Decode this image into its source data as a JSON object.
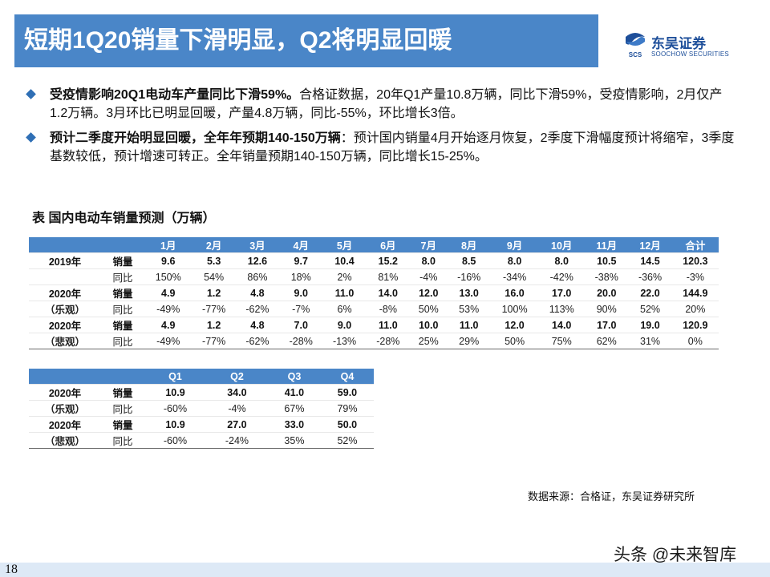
{
  "title": "短期1Q20销量下滑明显，Q2将明显回暖",
  "logo": {
    "cn": "东吴证券",
    "en": "SOOCHOW SECURITIES",
    "mark_text": "SCS"
  },
  "bullets": [
    {
      "bold": "受疫情影响20Q1电动车产量同比下滑59%。",
      "text": "合格证数据，20年Q1产量10.8万辆，同比下滑59%，受疫情影响，2月仅产1.2万辆。3月环比已明显回暖，产量4.8万辆，同比-55%，环比增长3倍。"
    },
    {
      "bold": "预计二季度开始明显回暖，全年年预期140-150万辆",
      "text": "：预计国内销量4月开始逐月恢复，2季度下滑幅度预计将缩窄，3季度基数较低，预计增速可转正。全年销量预期140-150万辆，同比增长15-25%。"
    }
  ],
  "table_caption": "表  国内电动车销量预测（万辆）",
  "table1": {
    "headers": [
      "1月",
      "2月",
      "3月",
      "4月",
      "5月",
      "6月",
      "7月",
      "8月",
      "9月",
      "10月",
      "11月",
      "12月",
      "合计"
    ],
    "groups": [
      {
        "label": "2019年",
        "label2": "",
        "sales_label": "销量",
        "sales": [
          "9.6",
          "5.3",
          "12.6",
          "9.7",
          "10.4",
          "15.2",
          "8.0",
          "8.5",
          "8.0",
          "8.0",
          "10.5",
          "14.5",
          "120.3"
        ],
        "yoy_label": "同比",
        "yoy": [
          "150%",
          "54%",
          "86%",
          "18%",
          "2%",
          "81%",
          "-4%",
          "-16%",
          "-34%",
          "-42%",
          "-38%",
          "-36%",
          "-3%"
        ]
      },
      {
        "label": "2020年",
        "label2": "（乐观）",
        "sales_label": "销量",
        "sales": [
          "4.9",
          "1.2",
          "4.8",
          "9.0",
          "11.0",
          "14.0",
          "12.0",
          "13.0",
          "16.0",
          "17.0",
          "20.0",
          "22.0",
          "144.9"
        ],
        "yoy_label": "同比",
        "yoy": [
          "-49%",
          "-77%",
          "-62%",
          "-7%",
          "6%",
          "-8%",
          "50%",
          "53%",
          "100%",
          "113%",
          "90%",
          "52%",
          "20%"
        ]
      },
      {
        "label": "2020年",
        "label2": "（悲观）",
        "sales_label": "销量",
        "sales": [
          "4.9",
          "1.2",
          "4.8",
          "7.0",
          "9.0",
          "11.0",
          "10.0",
          "11.0",
          "12.0",
          "14.0",
          "17.0",
          "19.0",
          "120.9"
        ],
        "yoy_label": "同比",
        "yoy": [
          "-49%",
          "-77%",
          "-62%",
          "-28%",
          "-13%",
          "-28%",
          "25%",
          "29%",
          "50%",
          "75%",
          "62%",
          "31%",
          "0%"
        ]
      }
    ]
  },
  "table2": {
    "headers": [
      "Q1",
      "Q2",
      "Q3",
      "Q4"
    ],
    "groups": [
      {
        "label": "2020年",
        "label2": "（乐观）",
        "sales_label": "销量",
        "sales": [
          "10.9",
          "34.0",
          "41.0",
          "59.0"
        ],
        "yoy_label": "同比",
        "yoy": [
          "-60%",
          "-4%",
          "67%",
          "79%"
        ]
      },
      {
        "label": "2020年",
        "label2": "（悲观）",
        "sales_label": "销量",
        "sales": [
          "10.9",
          "27.0",
          "33.0",
          "50.0"
        ],
        "yoy_label": "同比",
        "yoy": [
          "-60%",
          "-24%",
          "35%",
          "52%"
        ]
      }
    ]
  },
  "source": "数据来源：合格证，东吴证券研究所",
  "watermark": "头条 @未来智库",
  "page_number": "18",
  "colors": {
    "header_blue": "#4a86c8",
    "logo_blue": "#1e4f9a",
    "bullet_blue": "#2f6fb5"
  }
}
